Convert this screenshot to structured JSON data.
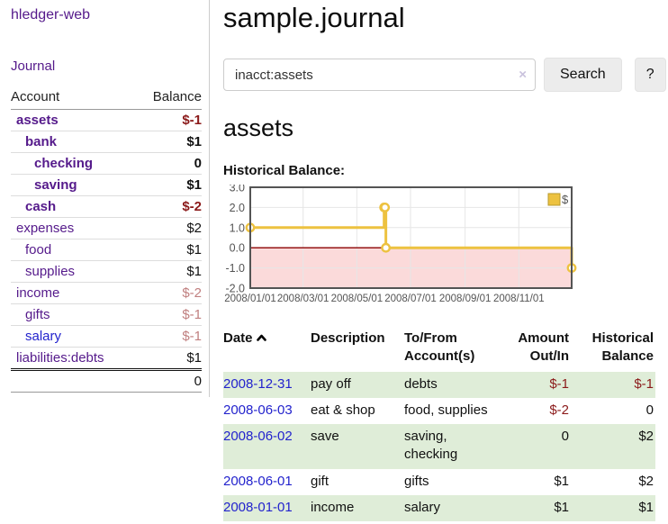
{
  "colors": {
    "purple": "#551a8b",
    "blue": "#2323cd",
    "negStrong": "#8b1a1a",
    "negSoft": "#c07f7f",
    "stripe": "#dfedd8"
  },
  "sidebar": {
    "app_title": "hledger-web",
    "journal_link": "Journal",
    "accounts_header": {
      "account": "Account",
      "balance": "Balance"
    },
    "accounts": [
      {
        "name": "assets",
        "indent": 1,
        "bold": true,
        "balance": "$-1",
        "balance_style": "neg-strong",
        "link_color": "purple"
      },
      {
        "name": "bank",
        "indent": 2,
        "bold": true,
        "balance": "$1",
        "balance_style": "pos",
        "link_color": "purple"
      },
      {
        "name": "checking",
        "indent": 3,
        "bold": true,
        "balance": "0",
        "balance_style": "pos",
        "link_color": "purple"
      },
      {
        "name": "saving",
        "indent": 3,
        "bold": true,
        "balance": "$1",
        "balance_style": "pos",
        "link_color": "purple"
      },
      {
        "name": "cash",
        "indent": 2,
        "bold": true,
        "balance": "$-2",
        "balance_style": "neg-strong",
        "link_color": "purple"
      },
      {
        "name": "expenses",
        "indent": 1,
        "bold": false,
        "balance": "$2",
        "balance_style": "pos",
        "link_color": "purple"
      },
      {
        "name": "food",
        "indent": 2,
        "bold": false,
        "balance": "$1",
        "balance_style": "pos",
        "link_color": "purple"
      },
      {
        "name": "supplies",
        "indent": 2,
        "bold": false,
        "balance": "$1",
        "balance_style": "pos",
        "link_color": "purple"
      },
      {
        "name": "income",
        "indent": 1,
        "bold": false,
        "balance": "$-2",
        "balance_style": "neg-soft",
        "link_color": "purple"
      },
      {
        "name": "gifts",
        "indent": 2,
        "bold": false,
        "balance": "$-1",
        "balance_style": "neg-soft",
        "link_color": "purple"
      },
      {
        "name": "salary",
        "indent": 2,
        "bold": false,
        "balance": "$-1",
        "balance_style": "neg-soft",
        "link_color": "blue"
      },
      {
        "name": "liabilities:debts",
        "indent": 1,
        "bold": false,
        "balance": "$1",
        "balance_style": "pos",
        "link_color": "purple"
      }
    ],
    "total": "0"
  },
  "header": {
    "title": "sample.journal"
  },
  "search": {
    "value": "inacct:assets",
    "clear_icon": "×",
    "search_label": "Search",
    "help_label": "?"
  },
  "account_page": {
    "title": "assets",
    "chart_label": "Historical Balance:"
  },
  "chart_data": {
    "type": "line",
    "style": "step",
    "series": [
      {
        "name": "$",
        "color": "#edc240",
        "points": [
          {
            "x": "2008-01-01",
            "y": 1
          },
          {
            "x": "2008-06-01",
            "y": 2
          },
          {
            "x": "2008-06-02",
            "y": 2
          },
          {
            "x": "2008-06-03",
            "y": 0
          },
          {
            "x": "2008-12-31",
            "y": -1
          }
        ]
      }
    ],
    "x_range": [
      "2008-01-01",
      "2008-12-31"
    ],
    "x_ticks": [
      "2008/01/01",
      "2008/03/01",
      "2008/05/01",
      "2008/07/01",
      "2008/09/01",
      "2008/11/01"
    ],
    "y_ticks": [
      3.0,
      2.0,
      1.0,
      0.0,
      -1.0,
      -2.0
    ],
    "ylim": [
      -2,
      3
    ],
    "legend_position": "top-right",
    "grid": true,
    "negative_region_color": "#fbdada",
    "zero_line_color": "#8b0000",
    "grid_color": "#e6e6e6",
    "border_color": "#545454",
    "marker_fill": "#ffffff",
    "legend_border": "#b89a2e"
  },
  "register": {
    "columns": {
      "date": "Date",
      "description": "Description",
      "tofrom": "To/From Account(s)",
      "amount": "Amount Out/In",
      "balance": "Historical Balance"
    },
    "rows": [
      {
        "date": "2008-12-31",
        "description": "pay off",
        "accounts": "debts",
        "amount": "$-1",
        "amount_neg": true,
        "balance": "$-1",
        "balance_neg": true
      },
      {
        "date": "2008-06-03",
        "description": "eat & shop",
        "accounts": "food, supplies",
        "amount": "$-2",
        "amount_neg": true,
        "balance": "0",
        "balance_neg": false
      },
      {
        "date": "2008-06-02",
        "description": "save",
        "accounts": "saving, checking",
        "amount": "0",
        "amount_neg": false,
        "balance": "$2",
        "balance_neg": false
      },
      {
        "date": "2008-06-01",
        "description": "gift",
        "accounts": "gifts",
        "amount": "$1",
        "amount_neg": false,
        "balance": "$2",
        "balance_neg": false
      },
      {
        "date": "2008-01-01",
        "description": "income",
        "accounts": "salary",
        "amount": "$1",
        "amount_neg": false,
        "balance": "$1",
        "balance_neg": false
      }
    ]
  }
}
